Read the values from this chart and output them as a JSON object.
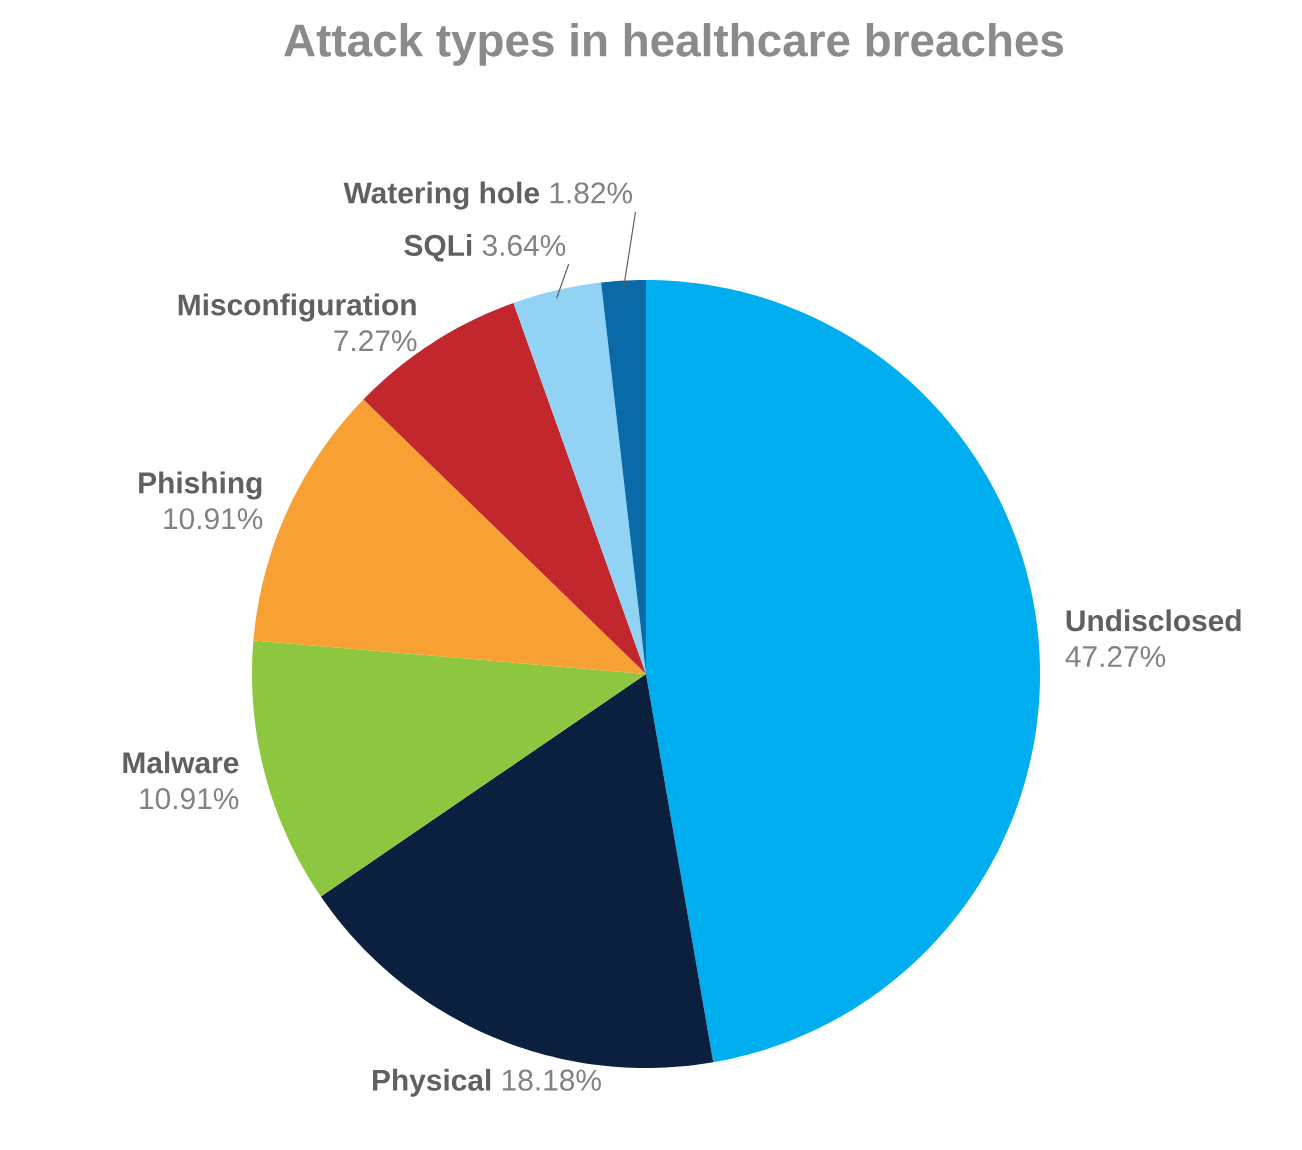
{
  "chart_data": {
    "type": "pie",
    "title": "Attack types in healthcare breaches",
    "categories": [
      "Undisclosed",
      "Physical",
      "Malware",
      "Phishing",
      "Misconfiguration",
      "SQLi",
      "Watering hole"
    ],
    "values": [
      47.27,
      18.18,
      10.91,
      10.91,
      7.27,
      3.64,
      1.82
    ],
    "value_labels": [
      "47.27%",
      "18.18%",
      "10.91%",
      "10.91%",
      "7.27%",
      "3.64%",
      "1.82%"
    ],
    "colors": [
      "#00aeef",
      "#0b1f3f",
      "#8dc63f",
      "#f7a033",
      "#c1272d",
      "#92d3f5",
      "#0a6aa8"
    ]
  }
}
